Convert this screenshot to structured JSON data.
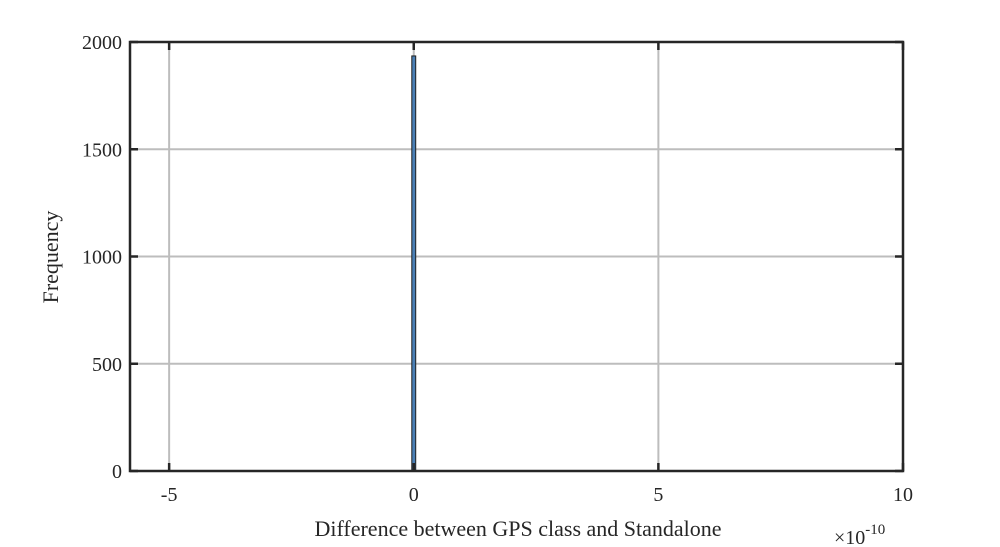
{
  "chart_data": {
    "type": "bar",
    "xlabel": "Difference between GPS class and Standalone",
    "ylabel": "Frequency",
    "x_exponent_label": "×10",
    "x_exponent_power": "-10",
    "x_scale": 1e-10,
    "xlim": [
      -5.8,
      10
    ],
    "ylim": [
      0,
      2000
    ],
    "xticks": [
      -5,
      0,
      5,
      10
    ],
    "xtick_labels": [
      "-5",
      "0",
      "5",
      "10"
    ],
    "yticks": [
      0,
      500,
      1000,
      1500,
      2000
    ],
    "ytick_labels": [
      "0",
      "500",
      "1000",
      "1500",
      "2000"
    ],
    "grid": true,
    "bar_color": "#4a7fb5",
    "bins": [
      {
        "x_start": -0.04,
        "x_end": 0.04,
        "value": 1935
      }
    ]
  }
}
